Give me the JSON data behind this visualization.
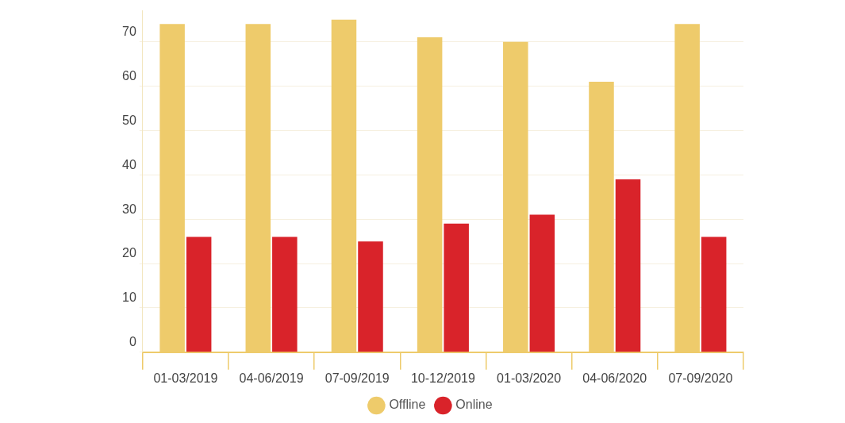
{
  "chart_data": {
    "type": "bar",
    "categories": [
      "01-03/2019",
      "04-06/2019",
      "07-09/2019",
      "10-12/2019",
      "01-03/2020",
      "04-06/2020",
      "07-09/2020"
    ],
    "series": [
      {
        "name": "Offline",
        "color": "#eecb6b",
        "values": [
          74,
          74,
          75,
          71,
          70,
          61,
          74
        ]
      },
      {
        "name": "Online",
        "color": "#d9232a",
        "values": [
          26,
          26,
          25,
          29,
          31,
          39,
          26
        ]
      }
    ],
    "ylim": [
      0,
      77
    ],
    "yticks": [
      0,
      10,
      20,
      30,
      40,
      50,
      60,
      70
    ],
    "grid": "y",
    "legend": "bottom"
  }
}
